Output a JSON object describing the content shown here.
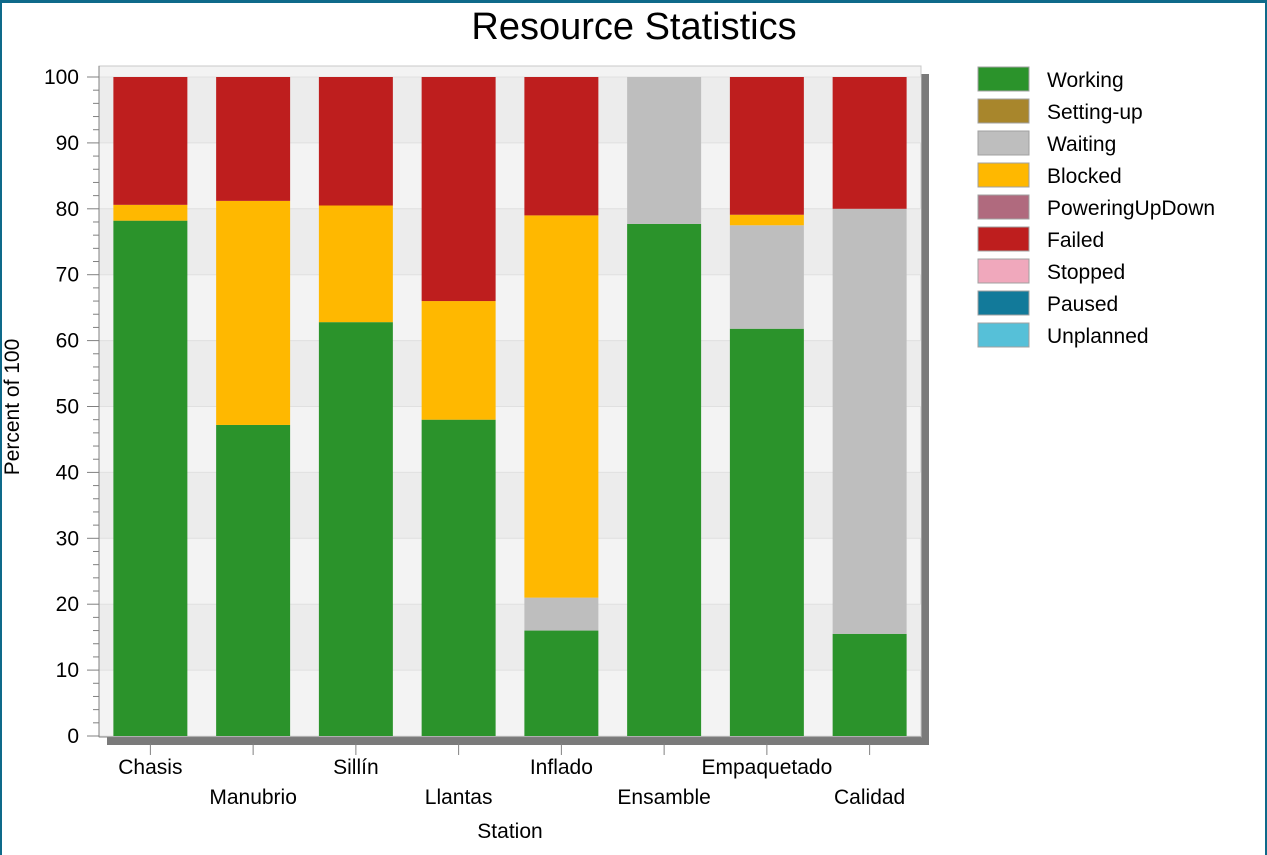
{
  "chart_data": {
    "type": "bar",
    "stacked": true,
    "title": "Resource Statistics",
    "xlabel": "Station",
    "ylabel": "Percent of 100",
    "ylim": [
      0,
      100
    ],
    "yticks": [
      0,
      10,
      20,
      30,
      40,
      50,
      60,
      70,
      80,
      90,
      100
    ],
    "categories": [
      "Chasis",
      "Manubrio",
      "Sillín",
      "Llantas",
      "Inflado",
      "Ensamble",
      "Empaquetado",
      "Calidad"
    ],
    "legend_position": "right",
    "series": [
      {
        "name": "Working",
        "color": "#2b932b",
        "values": [
          78.2,
          47.2,
          62.8,
          48.0,
          16.0,
          77.7,
          61.8,
          15.5
        ]
      },
      {
        "name": "Setting-up",
        "color": "#a8862c",
        "values": [
          0,
          0,
          0,
          0,
          0,
          0,
          0,
          0
        ]
      },
      {
        "name": "Waiting",
        "color": "#bebebe",
        "values": [
          0,
          0,
          0,
          0,
          5.0,
          22.3,
          15.7,
          64.5
        ]
      },
      {
        "name": "Blocked",
        "color": "#ffb800",
        "values": [
          2.4,
          34.0,
          17.7,
          18.0,
          58.0,
          0,
          1.6,
          0
        ]
      },
      {
        "name": "PoweringUpDown",
        "color": "#b06a7e",
        "values": [
          0,
          0,
          0,
          0,
          0,
          0,
          0,
          0
        ]
      },
      {
        "name": "Failed",
        "color": "#be1e1e",
        "values": [
          19.4,
          18.8,
          19.5,
          34.0,
          21.0,
          0,
          20.9,
          20.0
        ]
      },
      {
        "name": "Stopped",
        "color": "#f0a8bc",
        "values": [
          0,
          0,
          0,
          0,
          0,
          0,
          0,
          0
        ]
      },
      {
        "name": "Paused",
        "color": "#127a9a",
        "values": [
          0,
          0,
          0,
          0,
          0,
          0,
          0,
          0
        ]
      },
      {
        "name": "Unplanned",
        "color": "#56c0d8",
        "values": [
          0,
          0,
          0,
          0,
          0,
          0,
          0,
          0
        ]
      }
    ]
  }
}
